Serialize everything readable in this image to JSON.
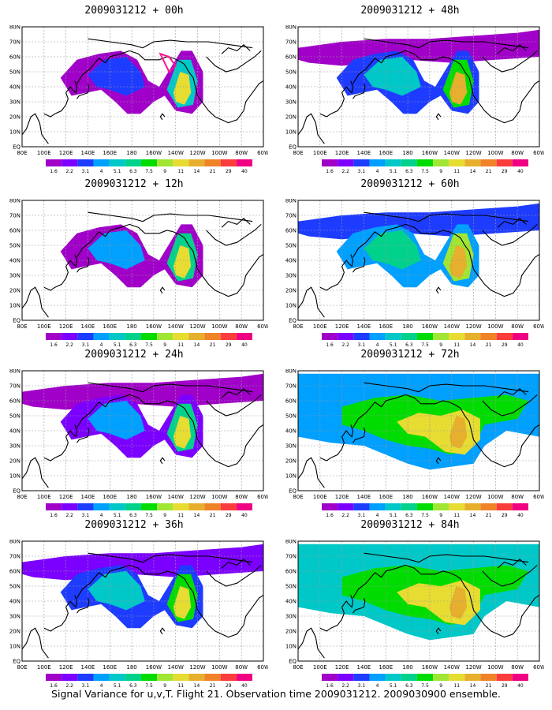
{
  "figure": {
    "caption": "Signal Variance for u,v,T. Flight 21. Observation time 2009031212. 2009030900 ensemble."
  },
  "map": {
    "lon_labels": [
      "80E",
      "100E",
      "120E",
      "140E",
      "160E",
      "180",
      "160W",
      "140W",
      "120W",
      "100W",
      "80W",
      "60W"
    ],
    "lat_labels": [
      "EQ",
      "10N",
      "20N",
      "30N",
      "40N",
      "50N",
      "60N",
      "70N",
      "80N"
    ]
  },
  "colorbar": {
    "labels": [
      "1.6",
      "2.2",
      "3.1",
      "4",
      "5.1",
      "6.3",
      "7.5",
      "9",
      "11",
      "14",
      "21",
      "29",
      "40"
    ],
    "colors": [
      "#a000c8",
      "#7c00ff",
      "#1e3cff",
      "#00a0ff",
      "#00c8c8",
      "#00d28c",
      "#00dc00",
      "#a0e632",
      "#e6dc32",
      "#e6af2d",
      "#f08228",
      "#fa3c3c",
      "#f00082"
    ]
  },
  "panels": [
    {
      "title": "2009031212 + 00h"
    },
    {
      "title": "2009031212 + 48h"
    },
    {
      "title": "2009031212 + 12h"
    },
    {
      "title": "2009031212 + 60h"
    },
    {
      "title": "2009031212 + 24h"
    },
    {
      "title": "2009031212 + 72h"
    },
    {
      "title": "2009031212 + 36h"
    },
    {
      "title": "2009031212 + 84h"
    }
  ]
}
